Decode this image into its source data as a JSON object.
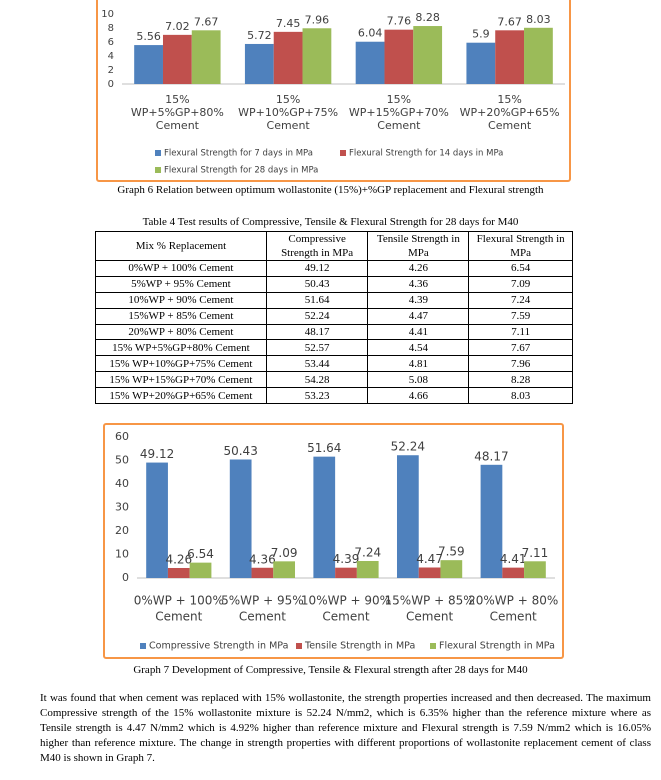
{
  "chart_data": [
    {
      "type": "bar",
      "categories": [
        [
          "15%",
          "WP+5%GP+80%",
          "Cement"
        ],
        [
          "15%",
          "WP+10%GP+75%",
          "Cement"
        ],
        [
          "15%",
          "WP+15%GP+70%",
          "Cement"
        ],
        [
          "15%",
          "WP+20%GP+65%",
          "Cement"
        ]
      ],
      "series": [
        {
          "name": "Flexural Strength for 7 days in MPa",
          "color": "#4f81bd",
          "values": [
            5.56,
            5.72,
            6.04,
            5.9
          ]
        },
        {
          "name": "Flexural Strength for 14 days in MPa",
          "color": "#c0504d",
          "values": [
            7.02,
            7.45,
            7.76,
            7.67
          ]
        },
        {
          "name": "Flexural Strength for 28 days in MPa",
          "color": "#9bbb59",
          "values": [
            7.67,
            7.96,
            8.28,
            8.03
          ]
        }
      ],
      "ylim": [
        0,
        10
      ],
      "yticks": [
        0,
        2,
        4,
        6,
        8,
        10
      ],
      "grid": false,
      "caption": "Graph 6 Relation between optimum wollastonite (15%)+%GP replacement and Flexural strength"
    },
    {
      "type": "bar",
      "categories": [
        [
          "0%WP + 100%",
          "Cement"
        ],
        [
          "5%WP + 95%",
          "Cement"
        ],
        [
          "10%WP + 90%",
          "Cement"
        ],
        [
          "15%WP + 85%",
          "Cement"
        ],
        [
          "20%WP + 80%",
          "Cement"
        ]
      ],
      "series": [
        {
          "name": "Compressive Strength in MPa",
          "color": "#4f81bd",
          "values": [
            49.12,
            50.43,
            51.64,
            52.24,
            48.17
          ]
        },
        {
          "name": "Tensile Strength in MPa",
          "color": "#c0504d",
          "values": [
            4.26,
            4.36,
            4.39,
            4.47,
            4.41
          ]
        },
        {
          "name": "Flexural Strength in MPa",
          "color": "#9bbb59",
          "values": [
            6.54,
            7.09,
            7.24,
            7.59,
            7.11
          ]
        }
      ],
      "ylim": [
        0,
        60
      ],
      "yticks": [
        0,
        10,
        20,
        30,
        40,
        50,
        60
      ],
      "grid": false,
      "caption": "Graph 7 Development of Compressive, Tensile & Flexural strength after 28 days for M40"
    }
  ],
  "table": {
    "title": "Table 4 Test results of Compressive, Tensile & Flexural Strength for 28 days for M40",
    "header": [
      "Mix % Replacement",
      "Compressive Strength in MPa",
      "Tensile Strength in MPa",
      "Flexural Strength in MPa"
    ],
    "rows": [
      [
        "0%WP + 100%  Cement",
        "49.12",
        "4.26",
        "6.54"
      ],
      [
        "5%WP + 95%  Cement",
        "50.43",
        "4.36",
        "7.09"
      ],
      [
        "10%WP + 90%  Cement",
        "51.64",
        "4.39",
        "7.24"
      ],
      [
        "15%WP + 85%  Cement",
        "52.24",
        "4.47",
        "7.59"
      ],
      [
        "20%WP + 80%  Cement",
        "48.17",
        "4.41",
        "7.11"
      ],
      [
        "15% WP+5%GP+80% Cement",
        "52.57",
        "4.54",
        "7.67"
      ],
      [
        "15% WP+10%GP+75% Cement",
        "53.44",
        "4.81",
        "7.96"
      ],
      [
        "15% WP+15%GP+70% Cement",
        "54.28",
        "5.08",
        "8.28"
      ],
      [
        "15% WP+20%GP+65% Cement",
        "53.23",
        "4.66",
        "8.03"
      ]
    ]
  },
  "paragraph": "It was found that when cement was replaced with 15% wollastonite, the strength properties increased and then decreased. The maximum Compressive strength of the 15% wollastonite mixture is 52.24 N/mm2, which is 6.35% higher than the reference mixture where as Tensile strength is 4.47 N/mm2 which is 4.92% higher than reference mixture and Flexural strength is 7.59 N/mm2 which is 16.05% higher than reference mixture. The change in strength properties with different proportions of wollastonite replacement cement of class M40 is shown in Graph 7."
}
